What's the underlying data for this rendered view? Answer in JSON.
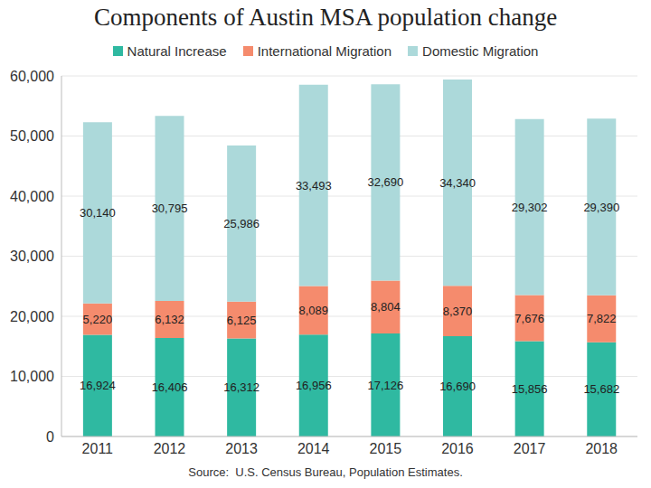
{
  "chart_data": {
    "type": "bar",
    "title": "Components of Austin MSA population change",
    "annotations": [
      "Source:  U.S. Census Bureau, Population Estimates."
    ],
    "categories": [
      "2011",
      "2012",
      "2013",
      "2014",
      "2015",
      "2016",
      "2017",
      "2018"
    ],
    "series": [
      {
        "name": "Natural Increase",
        "color": "#2fb9a1",
        "values": [
          16924,
          16406,
          16312,
          16956,
          17126,
          16690,
          15856,
          15682
        ],
        "value_labels": [
          "16,924",
          "16,406",
          "16,312",
          "16,956",
          "17,126",
          "16,690",
          "15,856",
          "15,682"
        ]
      },
      {
        "name": "International Migration",
        "color": "#f58b6d",
        "values": [
          5220,
          6132,
          6125,
          8089,
          8804,
          8370,
          7676,
          7822
        ],
        "value_labels": [
          "5,220",
          "6,132",
          "6,125",
          "8,089",
          "8,804",
          "8,370",
          "7,676",
          "7,822"
        ]
      },
      {
        "name": "Domestic Migration",
        "color": "#acd9da",
        "values": [
          30140,
          30795,
          25986,
          33493,
          32690,
          34340,
          29302,
          29390
        ],
        "value_labels": [
          "30,140",
          "30,795",
          "25,986",
          "33,493",
          "32,690",
          "34,340",
          "29,302",
          "29,390"
        ]
      }
    ],
    "ylim": [
      0,
      60000
    ],
    "yticks": [
      0,
      {
        "value": 10000,
        "label": "10,000"
      },
      {
        "value": 20000,
        "label": "20,000"
      },
      {
        "value": 30000,
        "label": "30,000"
      },
      {
        "value": 40000,
        "label": "40,000"
      },
      {
        "value": 50000,
        "label": "50,000"
      },
      {
        "value": 60000,
        "label": "60,000"
      }
    ],
    "stacked": true,
    "data_labels": true,
    "grid": true,
    "legend": "top"
  }
}
